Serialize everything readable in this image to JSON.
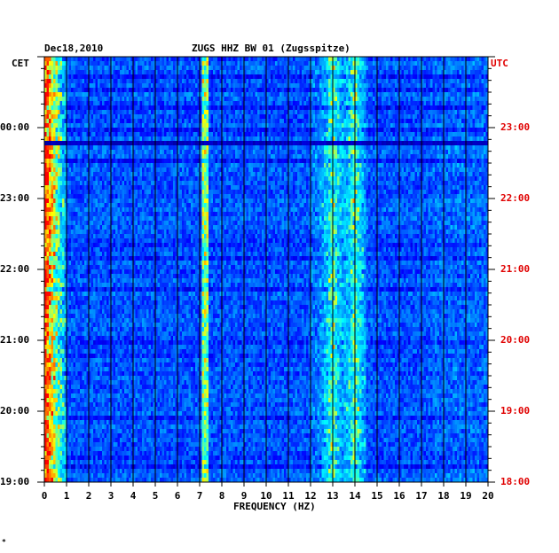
{
  "header": {
    "date": "Dec18,2010",
    "station": "ZUGS HHZ BW 01 (Zugsspitze)",
    "left_zone": "CET",
    "right_zone": "UTC"
  },
  "chart_data": {
    "type": "heatmap",
    "title": "ZUGS HHZ BW 01 (Zugsspitze)",
    "xlabel": "FREQUENCY (HZ)",
    "ylabel": "",
    "xlim": [
      0,
      20
    ],
    "x_ticks": [
      "0",
      "1",
      "2",
      "3",
      "4",
      "5",
      "6",
      "7",
      "8",
      "9",
      "10",
      "11",
      "12",
      "13",
      "14",
      "15",
      "16",
      "17",
      "18",
      "19",
      "20"
    ],
    "left_time_labels": [
      "00:00",
      "23:00",
      "22:00",
      "21:00",
      "20:00",
      "19:00"
    ],
    "right_time_labels": [
      "23:00",
      "22:00",
      "21:00",
      "20:00",
      "19:00",
      "18:00"
    ],
    "time_range_cet": [
      "19:00",
      "01:00"
    ],
    "bright_bands_hz": [
      0.3,
      7.2,
      13,
      14
    ],
    "colormap": [
      "#00008b",
      "#0000ff",
      "#0080ff",
      "#00ffff",
      "#ffff00",
      "#ff0000"
    ]
  },
  "footer_mark": "*"
}
